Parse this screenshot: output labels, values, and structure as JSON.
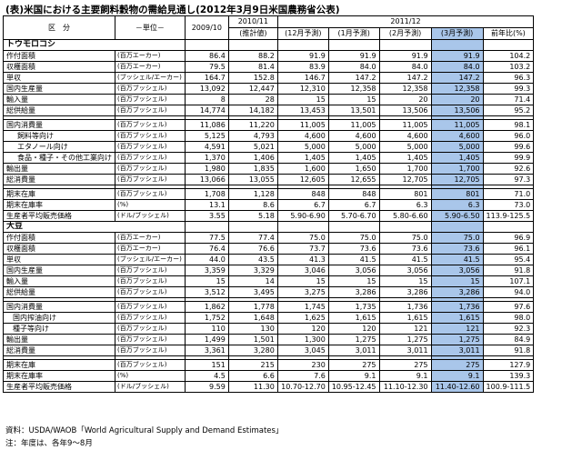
{
  "title": "(表)米国における主要飼料穀物の需給見通し(2012年3月9日米国農務省公表)",
  "header": {
    "category": "区　分",
    "unit": "－単位－",
    "years": [
      "2009/10",
      "2010/11",
      "2011/12"
    ],
    "sub": [
      "(推計値)",
      "(12月予測)",
      "(1月予測)",
      "(2月予測)",
      "(3月予測)",
      "前年比(%)"
    ]
  },
  "colors": {
    "highlight": "#a9c6ea"
  },
  "sections": [
    {
      "name": "トウモロコシ",
      "groups": [
        [
          {
            "label": "作付面積",
            "unit": "(百万エーカー)",
            "values": [
              "86.4",
              "88.2",
              "91.9",
              "91.9",
              "91.9",
              "91.9",
              "104.2"
            ]
          },
          {
            "label": "収穫面積",
            "unit": "(百万エーカー)",
            "values": [
              "79.5",
              "81.4",
              "83.9",
              "84.0",
              "84.0",
              "84.0",
              "103.2"
            ]
          },
          {
            "label": "単収",
            "unit": "(ブッシェル/エーカー)",
            "values": [
              "164.7",
              "152.8",
              "146.7",
              "147.2",
              "147.2",
              "147.2",
              "96.3"
            ]
          },
          {
            "label": "国内生産量",
            "unit": "(百万ブッシェル)",
            "values": [
              "13,092",
              "12,447",
              "12,310",
              "12,358",
              "12,358",
              "12,358",
              "99.3"
            ]
          },
          {
            "label": "輸入量",
            "unit": "(百万ブッシェル)",
            "values": [
              "8",
              "28",
              "15",
              "15",
              "20",
              "20",
              "71.4"
            ]
          },
          {
            "label": "総供給量",
            "unit": "(百万ブッシェル)",
            "values": [
              "14,774",
              "14,182",
              "13,453",
              "13,501",
              "13,506",
              "13,506",
              "95.2"
            ]
          }
        ],
        [
          {
            "label": "国内消費量",
            "unit": "(百万ブッシェル)",
            "values": [
              "11,086",
              "11,220",
              "11,005",
              "11,005",
              "11,005",
              "11,005",
              "98.1"
            ]
          },
          {
            "label": "飼料等向け",
            "unit": "(百万ブッシェル)",
            "indent": 2,
            "values": [
              "5,125",
              "4,793",
              "4,600",
              "4,600",
              "4,600",
              "4,600",
              "96.0"
            ]
          },
          {
            "label": "エタノール向け",
            "unit": "(百万ブッシェル)",
            "indent": 2,
            "values": [
              "4,591",
              "5,021",
              "5,000",
              "5,000",
              "5,000",
              "5,000",
              "99.6"
            ]
          },
          {
            "label": "食品・種子・その他工業向け",
            "unit": "(百万ブッシェル)",
            "indent": 2,
            "values": [
              "1,370",
              "1,406",
              "1,405",
              "1,405",
              "1,405",
              "1,405",
              "99.9"
            ]
          },
          {
            "label": "輸出量",
            "unit": "(百万ブッシェル)",
            "values": [
              "1,980",
              "1,835",
              "1,600",
              "1,650",
              "1,700",
              "1,700",
              "92.6"
            ]
          },
          {
            "label": "総消費量",
            "unit": "(百万ブッシェル)",
            "values": [
              "13,066",
              "13,055",
              "12,605",
              "12,655",
              "12,705",
              "12,705",
              "97.3"
            ]
          }
        ],
        [
          {
            "label": "期末在庫",
            "unit": "(百万ブッシェル)",
            "values": [
              "1,708",
              "1,128",
              "848",
              "848",
              "801",
              "801",
              "71.0"
            ]
          },
          {
            "label": "期末在庫率",
            "unit": "(%)",
            "values": [
              "13.1",
              "8.6",
              "6.7",
              "6.7",
              "6.3",
              "6.3",
              "73.0"
            ]
          },
          {
            "label": "生産者平均販売価格",
            "unit": "(ドル/ブッシェル)",
            "values": [
              "3.55",
              "5.18",
              "5.90-6.90",
              "5.70-6.70",
              "5.80-6.60",
              "5.90-6.50",
              "113.9-125.5"
            ]
          }
        ]
      ]
    },
    {
      "name": "大豆",
      "groups": [
        [
          {
            "label": "作付面積",
            "unit": "(百万エーカー)",
            "values": [
              "77.5",
              "77.4",
              "75.0",
              "75.0",
              "75.0",
              "75.0",
              "96.9"
            ]
          },
          {
            "label": "収穫面積",
            "unit": "(百万エーカー)",
            "values": [
              "76.4",
              "76.6",
              "73.7",
              "73.6",
              "73.6",
              "73.6",
              "96.1"
            ]
          },
          {
            "label": "単収",
            "unit": "(ブッシェル/エーカー)",
            "values": [
              "44.0",
              "43.5",
              "41.3",
              "41.5",
              "41.5",
              "41.5",
              "95.4"
            ]
          },
          {
            "label": "国内生産量",
            "unit": "(百万ブッシェル)",
            "values": [
              "3,359",
              "3,329",
              "3,046",
              "3,056",
              "3,056",
              "3,056",
              "91.8"
            ]
          },
          {
            "label": "輸入量",
            "unit": "(百万ブッシェル)",
            "values": [
              "15",
              "14",
              "15",
              "15",
              "15",
              "15",
              "107.1"
            ]
          },
          {
            "label": "総供給量",
            "unit": "(百万ブッシェル)",
            "values": [
              "3,512",
              "3,495",
              "3,275",
              "3,286",
              "3,286",
              "3,286",
              "94.0"
            ]
          }
        ],
        [
          {
            "label": "国内消費量",
            "unit": "(百万ブッシェル)",
            "values": [
              "1,862",
              "1,778",
              "1,745",
              "1,735",
              "1,736",
              "1,736",
              "97.6"
            ]
          },
          {
            "label": "国内搾油向け",
            "unit": "(百万ブッシェル)",
            "indent": 1,
            "values": [
              "1,752",
              "1,648",
              "1,625",
              "1,615",
              "1,615",
              "1,615",
              "98.0"
            ]
          },
          {
            "label": "種子等向け",
            "unit": "(百万ブッシェル)",
            "indent": 1,
            "values": [
              "110",
              "130",
              "120",
              "120",
              "121",
              "121",
              "92.3"
            ]
          },
          {
            "label": "輸出量",
            "unit": "(百万ブッシェル)",
            "values": [
              "1,499",
              "1,501",
              "1,300",
              "1,275",
              "1,275",
              "1,275",
              "84.9"
            ]
          },
          {
            "label": "総消費量",
            "unit": "(百万ブッシェル)",
            "values": [
              "3,361",
              "3,280",
              "3,045",
              "3,011",
              "3,011",
              "3,011",
              "91.8"
            ]
          }
        ],
        [
          {
            "label": "期末在庫",
            "unit": "(百万ブッシェル)",
            "values": [
              "151",
              "215",
              "230",
              "275",
              "275",
              "275",
              "127.9"
            ]
          },
          {
            "label": "期末在庫率",
            "unit": "(%)",
            "values": [
              "4.5",
              "6.6",
              "7.6",
              "9.1",
              "9.1",
              "9.1",
              "139.3"
            ]
          },
          {
            "label": "生産者平均販売価格",
            "unit": "(ドル/ブッシェル)",
            "values": [
              "9.59",
              "11.30",
              "10.70-12.70",
              "10.95-12.45",
              "11.10-12.30",
              "11.40-12.60",
              "100.9-111.5"
            ]
          }
        ]
      ]
    }
  ],
  "footnotes": {
    "source": "資料：USDA/WAOB「World Agricultural Supply and Demand Estimates」",
    "note": "注：年度は、各年9～8月"
  }
}
